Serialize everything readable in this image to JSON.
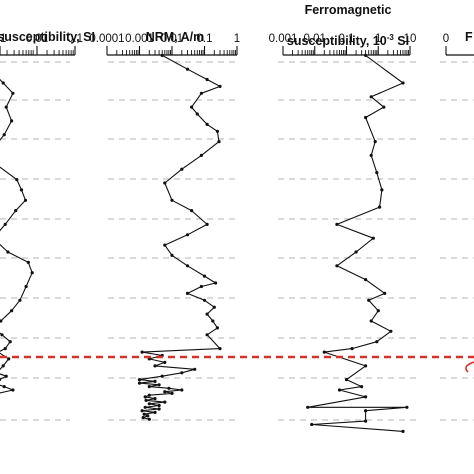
{
  "colors": {
    "boundary": "#d8322a",
    "grid": "#b5b5b5",
    "line": "#111111"
  },
  "chart_data": [
    {
      "type": "line",
      "title": "susceptibility, SI",
      "xscale": "log",
      "ticks": [
        "01",
        "0.01",
        "0.1"
      ],
      "ylabel": "",
      "series": [
        {
          "x": [
            0.0009,
            0.0016,
            0.0028,
            0.0019,
            0.0026,
            0.0017,
            0.0009,
            0.0012,
            0.0035,
            0.0046,
            0.0058,
            0.0033,
            0.0018,
            0.0009,
            0.0021,
            0.0068,
            0.0085,
            0.006,
            0.0042,
            0.0026,
            0.0014,
            0.0009,
            0.0015,
            0.0024,
            0.0018,
            0.0012,
            0.0022,
            0.0016,
            0.0011,
            0.0019,
            0.0013,
            0.0009,
            0.0017,
            0.0028,
            0.0012,
            0.0009
          ],
          "depth": [
            0.08,
            0.11,
            0.14,
            0.18,
            0.22,
            0.26,
            0.3,
            0.35,
            0.39,
            0.42,
            0.45,
            0.48,
            0.52,
            0.56,
            0.6,
            0.63,
            0.66,
            0.7,
            0.74,
            0.77,
            0.8,
            0.82,
            0.84,
            0.86,
            0.88,
            0.89,
            0.91,
            0.93,
            0.95,
            0.96,
            0.97,
            0.98,
            0.99,
            1.0,
            1.01,
            1.02
          ]
        }
      ]
    },
    {
      "type": "line",
      "title": "NRM, A/m",
      "xscale": "log",
      "xlim": [
        0.0001,
        1
      ],
      "ticks": [
        "0.0001",
        "0.001",
        "0.01",
        "0.1",
        "1"
      ],
      "ylabel": "",
      "series": [
        {
          "x": [
            0.005,
            0.03,
            0.12,
            0.3,
            0.08,
            0.04,
            0.06,
            0.12,
            0.25,
            0.28,
            0.08,
            0.02,
            0.006,
            0.01,
            0.04,
            0.12,
            0.03,
            0.006,
            0.01,
            0.03,
            0.1,
            0.22,
            0.08,
            0.03,
            0.1,
            0.2,
            0.12,
            0.18,
            0.25,
            0.12,
            0.3,
            0.0012,
            0.005,
            0.002,
            0.006,
            0.003,
            0.05,
            0.02,
            0.005,
            0.001,
            0.003,
            0.001,
            0.004,
            0.002,
            0.008,
            0.02,
            0.006,
            0.01,
            0.002,
            0.0015,
            0.003,
            0.0016,
            0.006,
            0.002,
            0.004,
            0.0015,
            0.004,
            0.0012,
            0.003,
            0.0014,
            0.0018,
            0.0013,
            0.002
          ],
          "depth": [
            0.03,
            0.07,
            0.1,
            0.12,
            0.14,
            0.18,
            0.2,
            0.23,
            0.25,
            0.28,
            0.32,
            0.36,
            0.4,
            0.45,
            0.48,
            0.52,
            0.55,
            0.58,
            0.61,
            0.64,
            0.67,
            0.69,
            0.7,
            0.72,
            0.74,
            0.76,
            0.78,
            0.8,
            0.82,
            0.84,
            0.88,
            0.89,
            0.9,
            0.91,
            0.92,
            0.93,
            0.94,
            0.95,
            0.96,
            0.97,
            0.975,
            0.98,
            0.985,
            0.99,
            0.995,
            1.0,
            1.005,
            1.01,
            1.015,
            1.02,
            1.025,
            1.03,
            1.035,
            1.04,
            1.045,
            1.05,
            1.055,
            1.06,
            1.065,
            1.07,
            1.075,
            1.08,
            1.085
          ]
        }
      ]
    },
    {
      "type": "line",
      "title": "Ferromagnetic susceptibility, 10-3 SI",
      "title_lines": [
        "Ferromagnetic",
        "susceptibility, 10",
        "-3",
        " SI"
      ],
      "xscale": "log",
      "xlim": [
        0.001,
        10
      ],
      "ticks": [
        "0.001",
        "0.01",
        "0.1",
        "1",
        "10"
      ],
      "ylabel": "",
      "series": [
        {
          "x": [
            0.4,
            6,
            0.6,
            1.5,
            0.4,
            0.8,
            0.6,
            0.9,
            1.3,
            1.1,
            0.05,
            0.7,
            0.2,
            0.05,
            0.4,
            1.6,
            0.5,
            1.0,
            0.6,
            2.5,
            0.9,
            0.15,
            0.02,
            0.4,
            0.1,
            0.3,
            0.06,
            0.4,
            0.006,
            8,
            0.4,
            0.4,
            0.008,
            6
          ],
          "depth": [
            0.03,
            0.11,
            0.15,
            0.18,
            0.21,
            0.28,
            0.32,
            0.37,
            0.42,
            0.47,
            0.52,
            0.56,
            0.6,
            0.64,
            0.68,
            0.72,
            0.74,
            0.77,
            0.8,
            0.83,
            0.86,
            0.88,
            0.89,
            0.93,
            0.97,
            0.99,
            1.0,
            1.02,
            1.05,
            1.05,
            1.06,
            1.09,
            1.1,
            1.12
          ]
        }
      ]
    },
    {
      "type": "line",
      "title": "F",
      "xscale": "linear",
      "ticks": [
        "0"
      ],
      "ylabel": "",
      "series": []
    }
  ]
}
